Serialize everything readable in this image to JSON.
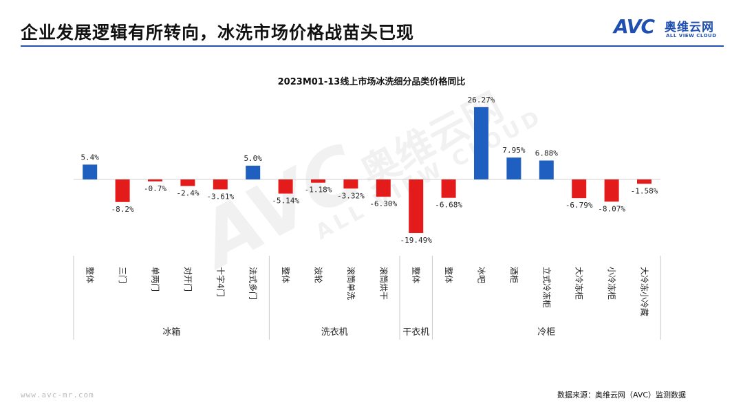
{
  "page": {
    "title": "企业发展逻辑有所转向，冰洗市场价格战苗头已现",
    "logo": {
      "mark": "AVC",
      "cn": "奥维云网",
      "en": "ALL VIEW CLOUD"
    },
    "watermark": {
      "mark": "AVC",
      "cn": "奥维云网",
      "en": "ALL VIEW CLOUD"
    },
    "footer_url": "www.avc-mr.com",
    "source": "数据来源：奥维云网（AVC）监测数据"
  },
  "colors": {
    "positive": "#1f5fbf",
    "negative": "#e31b1b",
    "accent": "#1f4fb0"
  },
  "chart_data": {
    "type": "bar",
    "title": "2023M01-13线上市场冰洗细分品类价格同比",
    "categories": [
      "整体",
      "三门",
      "单两门",
      "对开门",
      "十字4门",
      "法式多门",
      "整体",
      "波轮",
      "滚筒单洗",
      "滚筒烘干",
      "整体",
      "整体",
      "冰吧",
      "酒柜",
      "立式冷冻柜",
      "大冷冻柜",
      "小冷冻柜",
      "大冷冻小冷藏"
    ],
    "values": [
      5.4,
      -8.2,
      -0.7,
      -2.4,
      -3.61,
      5.0,
      -5.14,
      -1.18,
      -3.32,
      -6.3,
      -19.49,
      -6.68,
      26.27,
      7.95,
      6.88,
      -6.79,
      -8.07,
      -1.58
    ],
    "value_labels": [
      "5.4%",
      "-8.2%",
      "-0.7%",
      "-2.4%",
      "-3.61%",
      "5.0%",
      "-5.14%",
      "-1.18%",
      "-3.32%",
      "-6.30%",
      "-19.49%",
      "-6.68%",
      "26.27%",
      "7.95%",
      "6.88%",
      "-6.79%",
      "-8.07%",
      "-1.58%"
    ],
    "groups": [
      {
        "name": "冰箱",
        "start": 0,
        "end": 5
      },
      {
        "name": "洗衣机",
        "start": 6,
        "end": 9
      },
      {
        "name": "干衣机",
        "start": 10,
        "end": 10
      },
      {
        "name": "冷柜",
        "start": 11,
        "end": 17
      }
    ],
    "ylim": [
      -20,
      27
    ],
    "grid": false,
    "legend": "none"
  }
}
